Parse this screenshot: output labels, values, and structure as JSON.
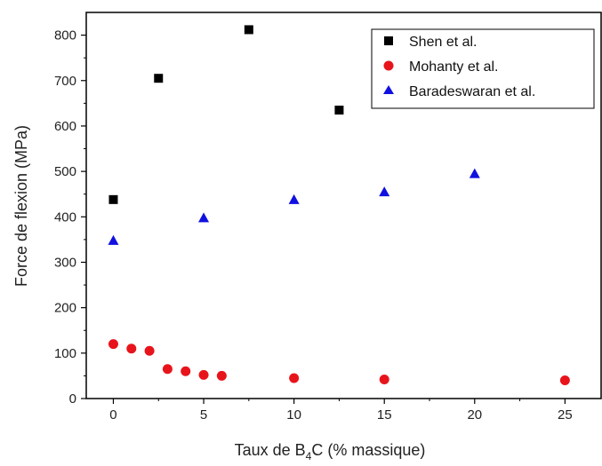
{
  "chart_data": {
    "type": "scatter",
    "title": "",
    "xlabel_main": "Taux de B",
    "xlabel_sub": "4",
    "xlabel_rest": "C (% massique)",
    "ylabel": "Force de flexion (MPa)",
    "xlim": [
      -1.5,
      27
    ],
    "ylim": [
      0,
      850
    ],
    "xticks": [
      0,
      5,
      10,
      15,
      20,
      25
    ],
    "yticks": [
      0,
      100,
      200,
      300,
      400,
      500,
      600,
      700,
      800
    ],
    "grid": false,
    "legend_position": "top-right",
    "series": [
      {
        "name": "Shen et al.",
        "marker": "square",
        "color": "#000000",
        "x": [
          0,
          2.5,
          7.5,
          12.5
        ],
        "y": [
          438,
          705,
          812,
          635
        ]
      },
      {
        "name": "Mohanty et al.",
        "marker": "circle",
        "color": "#e8141b",
        "x": [
          0,
          1,
          2,
          3,
          4,
          5,
          6,
          10,
          15,
          25
        ],
        "y": [
          120,
          110,
          105,
          65,
          60,
          52,
          50,
          45,
          42,
          40
        ]
      },
      {
        "name": "Baradeswaran et al.",
        "marker": "triangle",
        "color": "#1010e0",
        "x": [
          0,
          5,
          10,
          15,
          20
        ],
        "y": [
          348,
          398,
          438,
          455,
          495
        ]
      }
    ]
  }
}
